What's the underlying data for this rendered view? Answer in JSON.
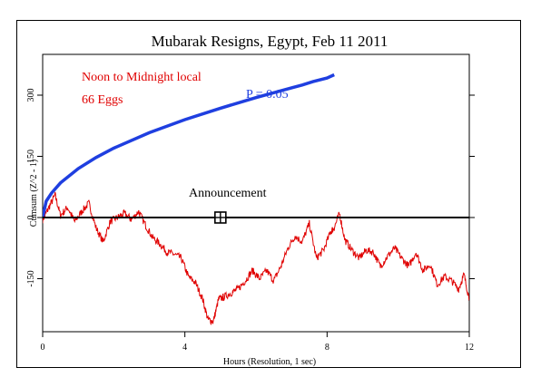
{
  "chart_data": {
    "type": "line",
    "title": "Mubarak Resigns, Egypt, Feb 11 2011",
    "xlabel": "Hours (Resolution, 1 sec)",
    "ylabel": "Cumsum (Z^2 - 1)",
    "xlim": [
      0,
      12
    ],
    "ylim": [
      -280,
      400
    ],
    "x_ticks": [
      "0",
      "4",
      "8",
      "12"
    ],
    "x_tick_values": [
      0,
      4,
      8,
      12
    ],
    "y_ticks": [
      "-150",
      "0",
      "150",
      "300"
    ],
    "y_tick_values": [
      -150,
      0,
      150,
      300
    ],
    "grid": false,
    "annotations": {
      "period": "Noon to Midnight local",
      "eggs": "66 Eggs",
      "significance": "P = 0.05",
      "event": "Announcement"
    },
    "event_marker": {
      "x": 5.0,
      "y": 0
    },
    "series": [
      {
        "color": "#e00000",
        "x": [
          0,
          0.15,
          0.35,
          0.5,
          0.7,
          0.9,
          1.1,
          1.3,
          1.5,
          1.7,
          1.9,
          2.1,
          2.3,
          2.5,
          2.7,
          2.9,
          3.1,
          3.3,
          3.5,
          3.7,
          3.9,
          4.1,
          4.3,
          4.5,
          4.65,
          4.8,
          4.95,
          5.1,
          5.3,
          5.5,
          5.7,
          5.9,
          6.1,
          6.3,
          6.5,
          6.7,
          6.9,
          7.1,
          7.3,
          7.5,
          7.7,
          7.9,
          8.1,
          8.2,
          8.35,
          8.5,
          8.7,
          8.9,
          9.1,
          9.3,
          9.5,
          9.7,
          9.9,
          10.1,
          10.3,
          10.5,
          10.7,
          10.9,
          11.1,
          11.3,
          11.5,
          11.7,
          11.85,
          12
        ],
        "y": [
          -5,
          20,
          55,
          5,
          25,
          -10,
          15,
          35,
          -25,
          -60,
          -10,
          0,
          10,
          -5,
          15,
          -20,
          -50,
          -65,
          -85,
          -90,
          -100,
          -145,
          -160,
          -200,
          -250,
          -255,
          -200,
          -195,
          -185,
          -175,
          -155,
          -130,
          -150,
          -130,
          -155,
          -120,
          -75,
          -45,
          -60,
          -15,
          -100,
          -80,
          -35,
          -25,
          10,
          -55,
          -80,
          -100,
          -80,
          -85,
          -120,
          -95,
          -75,
          -100,
          -120,
          -85,
          -130,
          -115,
          -165,
          -145,
          -155,
          -175,
          -140,
          -200
        ]
      },
      {
        "name": "P = 0.05",
        "color": "#1f3fe0",
        "x": [
          0,
          0.1,
          0.25,
          0.5,
          1,
          1.5,
          2,
          3,
          4,
          5,
          6,
          7,
          7.3,
          7.6,
          8,
          8.2
        ],
        "y": [
          0,
          40,
          60,
          85,
          120,
          147,
          170,
          208,
          240,
          268,
          294,
          318,
          325,
          333,
          342,
          350
        ]
      }
    ]
  }
}
